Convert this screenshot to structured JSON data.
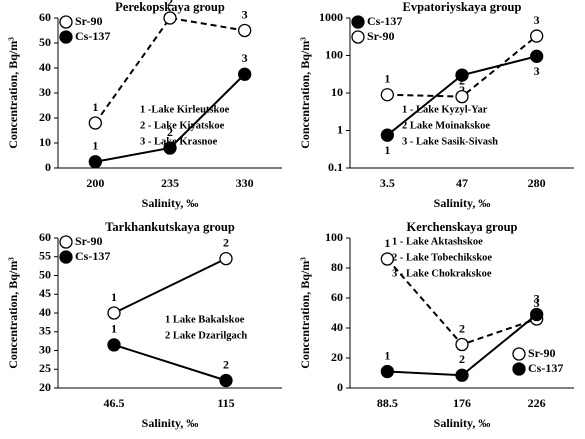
{
  "chart_data": [
    {
      "type": "line",
      "title": "Perekopskaya group",
      "xlabel": "Salinity, ‰",
      "ylabel": "Concentration, Bq/m³",
      "categories": [
        "200",
        "235",
        "330"
      ],
      "ylim": [
        0,
        60
      ],
      "yticks": [
        0,
        10,
        20,
        30,
        40,
        50,
        60
      ],
      "log_y": false,
      "legend": "top-left",
      "series": [
        {
          "name": "Sr-90",
          "color": "#000000",
          "filled": false,
          "dashed": true,
          "values": [
            18,
            60,
            55
          ],
          "point_labels": [
            "1",
            "2",
            "3"
          ]
        },
        {
          "name": "Cs-137",
          "color": "#000000",
          "filled": true,
          "dashed": false,
          "values": [
            2.5,
            8,
            37.5
          ],
          "point_labels": [
            "1",
            "2",
            "3"
          ]
        }
      ],
      "annotations": [
        "1  -Lake Kirleutskoe",
        "2  - Lake Kiyatskoe",
        "3  - Lake Krasnoe"
      ]
    },
    {
      "type": "line",
      "title": "Evpatoriyskaya group",
      "xlabel": "Salinity, ‰",
      "ylabel": "Concentration, Bq/m³",
      "categories": [
        "3.5",
        "47",
        "280"
      ],
      "ylim": [
        0.1,
        1000
      ],
      "yticks": [
        0.1,
        1,
        10,
        100,
        1000
      ],
      "log_y": true,
      "legend": "top-left",
      "series": [
        {
          "name": "Cs-137",
          "color": "#000000",
          "filled": true,
          "dashed": false,
          "values": [
            0.75,
            30,
            95
          ],
          "point_labels": [
            "1",
            "2",
            "3"
          ]
        },
        {
          "name": "Sr-90",
          "color": "#000000",
          "filled": false,
          "dashed": true,
          "values": [
            9,
            8,
            330
          ],
          "point_labels": [
            "1",
            "2",
            "3"
          ]
        }
      ],
      "annotations": [
        "1  - Lake Kyzyl-Yar",
        "2   Lake Moinakskoe",
        "3  - Lake Sasik-Sivash"
      ]
    },
    {
      "type": "line",
      "title": "Tarkhankutskaya group",
      "xlabel": "Salinity, ‰",
      "ylabel": "Concentration, Bq/m³",
      "categories": [
        "46.5",
        "115"
      ],
      "ylim": [
        20,
        60
      ],
      "yticks": [
        20,
        25,
        30,
        35,
        40,
        45,
        50,
        55,
        60
      ],
      "log_y": false,
      "legend": "top-left",
      "series": [
        {
          "name": "Sr-90",
          "color": "#000000",
          "filled": false,
          "dashed": false,
          "values": [
            40,
            54.5
          ],
          "point_labels": [
            "1",
            "2"
          ]
        },
        {
          "name": "Cs-137",
          "color": "#000000",
          "filled": true,
          "dashed": false,
          "values": [
            31.5,
            22
          ],
          "point_labels": [
            "1",
            "2"
          ]
        }
      ],
      "annotations": [
        "1  Lake Bakalskoe",
        "2  Lake Dzarilgach"
      ]
    },
    {
      "type": "line",
      "title": "Kerchenskaya group",
      "xlabel": "Salinity, ‰",
      "ylabel": "Concentration, Bq/m³",
      "categories": [
        "88.5",
        "176",
        "226"
      ],
      "ylim": [
        0,
        100
      ],
      "yticks": [
        0,
        20,
        40,
        60,
        80,
        100
      ],
      "log_y": false,
      "legend": "bottom-right",
      "series": [
        {
          "name": "Sr-90",
          "color": "#000000",
          "filled": false,
          "dashed": true,
          "values": [
            86,
            29,
            46
          ],
          "point_labels": [
            "1",
            "2",
            "3"
          ]
        },
        {
          "name": "Cs-137",
          "color": "#000000",
          "filled": true,
          "dashed": false,
          "values": [
            11,
            8.5,
            49
          ],
          "point_labels": [
            "1",
            "2",
            "3"
          ]
        }
      ],
      "annotations": [
        "1  - Lake Aktashskoe",
        "2  - Lake Tobechikskoe",
        "3  - Lake Chokrakskoe"
      ]
    }
  ]
}
